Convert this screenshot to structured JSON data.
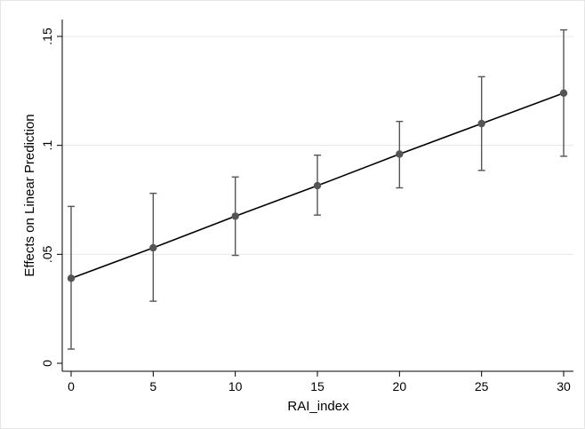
{
  "chart_data": {
    "type": "line",
    "title": "",
    "xlabel": "RAI_index",
    "ylabel": "Effects on Linear Prediction",
    "xlim": [
      0,
      30
    ],
    "ylim": [
      0,
      0.15
    ],
    "x_ticks": [
      0,
      5,
      10,
      15,
      20,
      25,
      30
    ],
    "x_tick_labels": [
      "0",
      "5",
      "10",
      "15",
      "20",
      "25",
      "30"
    ],
    "y_ticks": [
      0,
      0.05,
      0.1,
      0.15
    ],
    "y_tick_labels": [
      "0",
      ".05",
      ".1",
      ".15"
    ],
    "grid": true,
    "series": [
      {
        "x": [
          0,
          5,
          10,
          15,
          20,
          25,
          30
        ],
        "y": [
          0.039,
          0.053,
          0.0675,
          0.0815,
          0.096,
          0.11,
          0.124
        ],
        "ci_low": [
          0.0065,
          0.0285,
          0.0495,
          0.068,
          0.0805,
          0.0885,
          0.095
        ],
        "ci_high": [
          0.072,
          0.078,
          0.0855,
          0.0955,
          0.111,
          0.1315,
          0.153
        ]
      }
    ],
    "colors": {
      "line": "#000000",
      "marker": "#555555",
      "errorbar": "#555555",
      "grid": "#e8e8e8"
    }
  }
}
